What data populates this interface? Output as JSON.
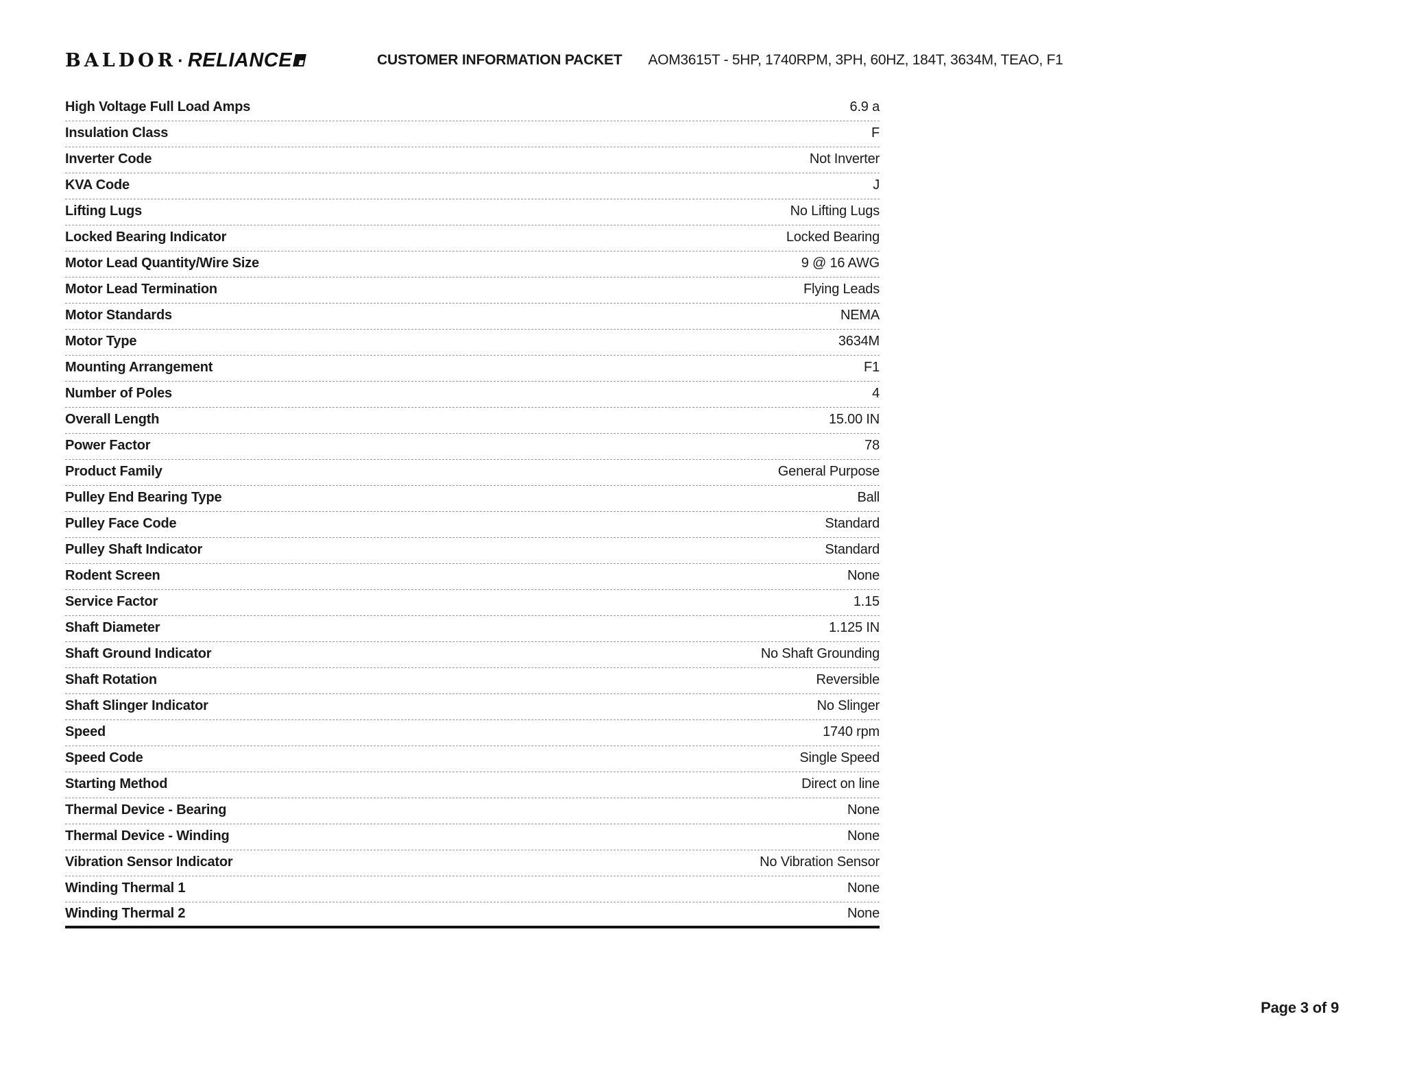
{
  "page": {
    "logo": {
      "brand_left": "BALDOR",
      "separator": "·",
      "brand_right": "RELIANCE",
      "mark_icon": "registered-trademark-box"
    },
    "header": {
      "title": "CUSTOMER INFORMATION PACKET",
      "product_line": "AOM3615T - 5HP, 1740RPM, 3PH, 60HZ, 184T, 3634M, TEAO, F1"
    },
    "footer": {
      "page_label": "Page 3 of 9"
    }
  },
  "spec_table": {
    "rows": [
      {
        "label": "High Voltage Full Load Amps",
        "value": "6.9 a"
      },
      {
        "label": "Insulation Class",
        "value": "F"
      },
      {
        "label": "Inverter Code",
        "value": "Not Inverter"
      },
      {
        "label": "KVA Code",
        "value": "J"
      },
      {
        "label": "Lifting Lugs",
        "value": "No Lifting Lugs"
      },
      {
        "label": "Locked Bearing Indicator",
        "value": "Locked Bearing"
      },
      {
        "label": "Motor Lead Quantity/Wire Size",
        "value": "9 @ 16 AWG"
      },
      {
        "label": "Motor Lead Termination",
        "value": "Flying Leads"
      },
      {
        "label": "Motor Standards",
        "value": "NEMA"
      },
      {
        "label": "Motor Type",
        "value": "3634M"
      },
      {
        "label": "Mounting Arrangement",
        "value": "F1"
      },
      {
        "label": "Number of Poles",
        "value": "4"
      },
      {
        "label": "Overall Length",
        "value": "15.00 IN"
      },
      {
        "label": "Power Factor",
        "value": "78"
      },
      {
        "label": "Product Family",
        "value": "General Purpose"
      },
      {
        "label": "Pulley End Bearing Type",
        "value": "Ball"
      },
      {
        "label": "Pulley Face Code",
        "value": "Standard"
      },
      {
        "label": "Pulley Shaft Indicator",
        "value": "Standard"
      },
      {
        "label": "Rodent Screen",
        "value": "None"
      },
      {
        "label": "Service Factor",
        "value": "1.15"
      },
      {
        "label": "Shaft Diameter",
        "value": "1.125 IN"
      },
      {
        "label": "Shaft Ground Indicator",
        "value": "No Shaft Grounding"
      },
      {
        "label": "Shaft Rotation",
        "value": "Reversible"
      },
      {
        "label": "Shaft Slinger Indicator",
        "value": "No Slinger"
      },
      {
        "label": "Speed",
        "value": "1740 rpm"
      },
      {
        "label": "Speed Code",
        "value": "Single Speed"
      },
      {
        "label": "Starting Method",
        "value": "Direct on line"
      },
      {
        "label": "Thermal Device - Bearing",
        "value": "None"
      },
      {
        "label": "Thermal Device - Winding",
        "value": "None"
      },
      {
        "label": "Vibration Sensor Indicator",
        "value": "No Vibration Sensor"
      },
      {
        "label": "Winding Thermal 1",
        "value": "None"
      },
      {
        "label": "Winding Thermal 2",
        "value": "None"
      }
    ]
  },
  "colors": {
    "background": "#ffffff",
    "text": "#1a1a1a",
    "divider": "#999999",
    "table_bottom_rule": "#111111"
  }
}
